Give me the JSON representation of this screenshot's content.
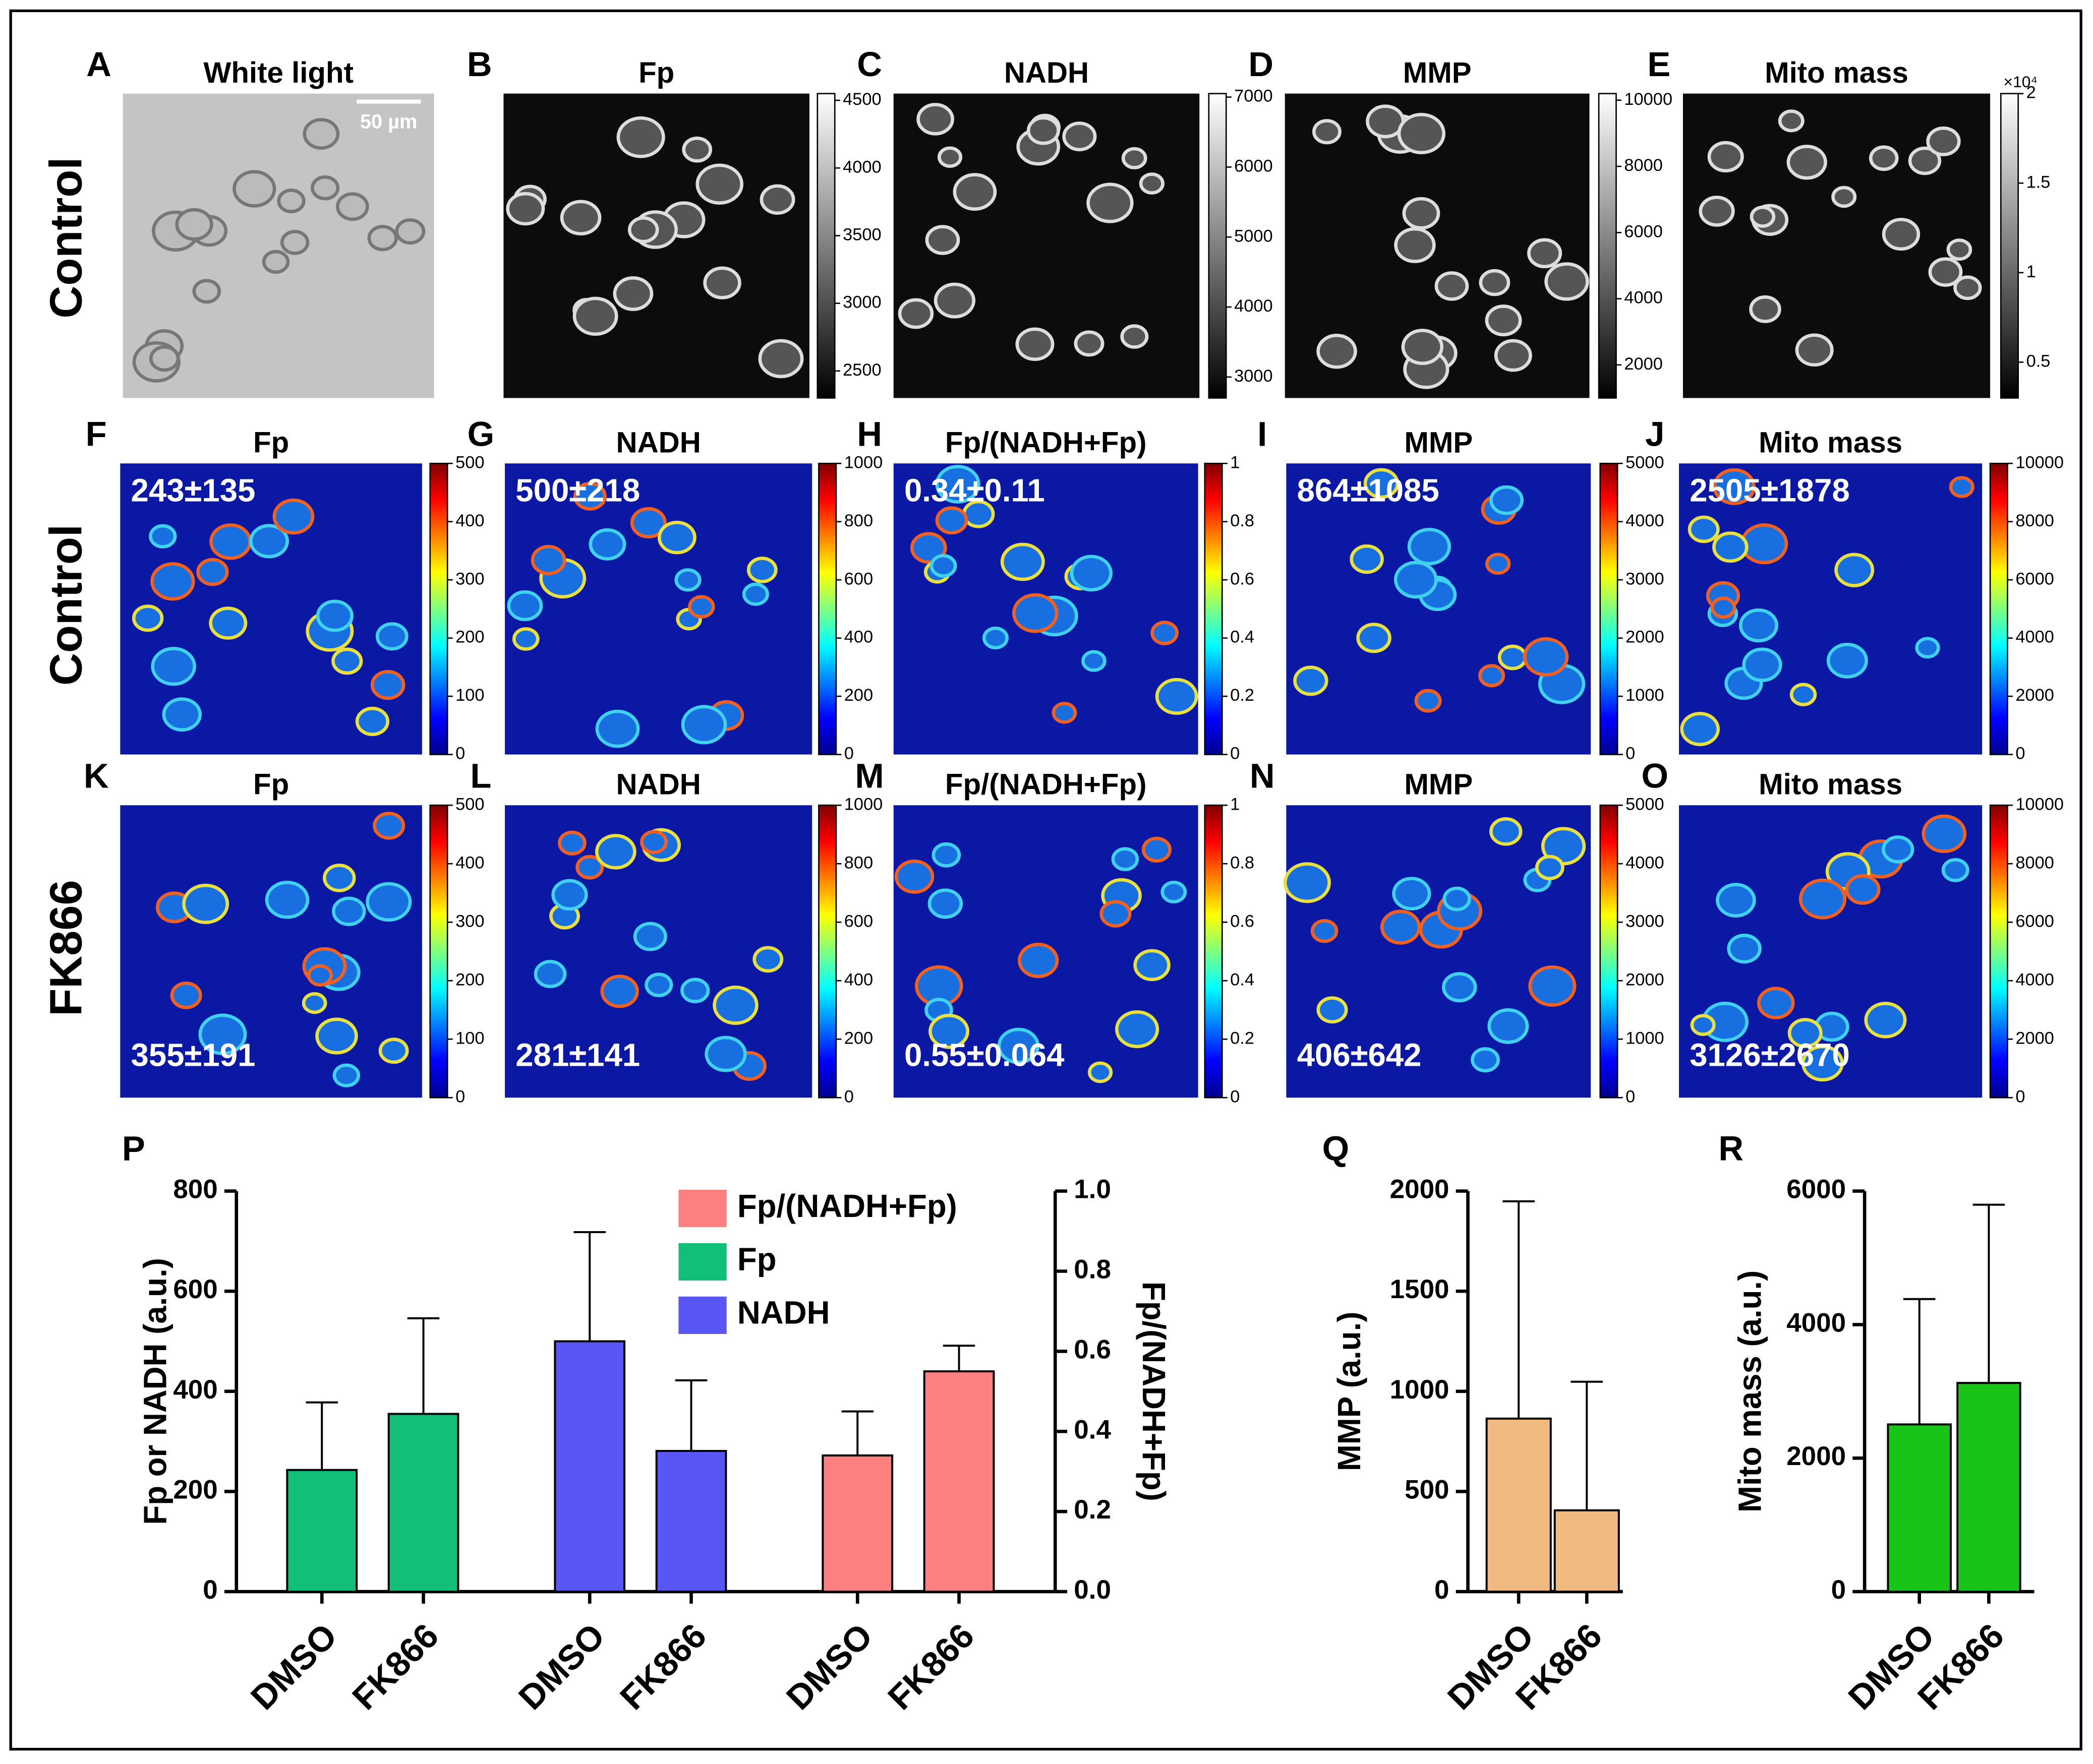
{
  "row_labels": [
    "Control",
    "Control",
    "FK866"
  ],
  "panels": [
    {
      "letter": "A",
      "title": "White light",
      "scale_bar": "50 µm"
    },
    {
      "letter": "B",
      "title": "Fp",
      "colorbar": {
        "lim": [
          2300,
          4550
        ],
        "ticks": [
          2500,
          3000,
          3500,
          4000,
          4500
        ]
      }
    },
    {
      "letter": "C",
      "title": "NADH",
      "colorbar": {
        "lim": [
          2700,
          7050
        ],
        "ticks": [
          3000,
          4000,
          5000,
          6000,
          7000
        ]
      }
    },
    {
      "letter": "D",
      "title": "MMP",
      "colorbar": {
        "lim": [
          1000,
          10200
        ],
        "ticks": [
          2000,
          4000,
          6000,
          8000,
          10000
        ]
      }
    },
    {
      "letter": "E",
      "title": "Mito mass",
      "colorbar": {
        "lim": [
          0.3,
          2
        ],
        "ticks": [
          0.5,
          1,
          1.5,
          2
        ],
        "multiplier": "×10⁴"
      }
    },
    {
      "letter": "F",
      "title": "Fp",
      "annotation": "243±135",
      "colorbar": {
        "lim": [
          0,
          500
        ],
        "ticks": [
          0,
          100,
          200,
          300,
          400,
          500
        ]
      }
    },
    {
      "letter": "G",
      "title": "NADH",
      "annotation": "500±218",
      "colorbar": {
        "lim": [
          0,
          1000
        ],
        "ticks": [
          0,
          200,
          400,
          600,
          800,
          1000
        ]
      }
    },
    {
      "letter": "H",
      "title": "Fp/(NADH+Fp)",
      "annotation": "0.34±0.11",
      "colorbar": {
        "lim": [
          0,
          1
        ],
        "ticks": [
          0,
          0.2,
          0.4,
          0.6,
          0.8,
          1
        ]
      }
    },
    {
      "letter": "I",
      "title": "MMP",
      "annotation": "864±1085",
      "colorbar": {
        "lim": [
          0,
          5000
        ],
        "ticks": [
          0,
          1000,
          2000,
          3000,
          4000,
          5000
        ]
      }
    },
    {
      "letter": "J",
      "title": "Mito mass",
      "annotation": "2505±1878",
      "colorbar": {
        "lim": [
          0,
          10000
        ],
        "ticks": [
          0,
          2000,
          4000,
          6000,
          8000,
          10000
        ]
      }
    },
    {
      "letter": "K",
      "title": "Fp",
      "annotation": "355±191",
      "colorbar": {
        "lim": [
          0,
          500
        ],
        "ticks": [
          0,
          100,
          200,
          300,
          400,
          500
        ]
      }
    },
    {
      "letter": "L",
      "title": "NADH",
      "annotation": "281±141",
      "colorbar": {
        "lim": [
          0,
          1000
        ],
        "ticks": [
          0,
          200,
          400,
          600,
          800,
          1000
        ]
      }
    },
    {
      "letter": "M",
      "title": "Fp/(NADH+Fp)",
      "annotation": "0.55±0.064",
      "colorbar": {
        "lim": [
          0,
          1
        ],
        "ticks": [
          0,
          0.2,
          0.4,
          0.6,
          0.8,
          1
        ]
      }
    },
    {
      "letter": "N",
      "title": "MMP",
      "annotation": "406±642",
      "colorbar": {
        "lim": [
          0,
          5000
        ],
        "ticks": [
          0,
          1000,
          2000,
          3000,
          4000,
          5000
        ]
      }
    },
    {
      "letter": "O",
      "title": "Mito mass",
      "annotation": "3126±2670",
      "colorbar": {
        "lim": [
          0,
          10000
        ],
        "ticks": [
          0,
          2000,
          4000,
          6000,
          8000,
          10000
        ]
      }
    }
  ],
  "chart_data": [
    {
      "type": "bar",
      "letter": "P",
      "y_label": "Fp or NADH (a.u.)",
      "y2_label": "Fp/(NADH+Fp)",
      "categories": [
        "DMSO",
        "FK866",
        "DMSO",
        "FK866",
        "DMSO",
        "FK866"
      ],
      "ylim": [
        0,
        800
      ],
      "yticks": [
        0,
        200,
        400,
        600,
        800
      ],
      "y2lim": [
        0,
        1
      ],
      "y2ticks": [
        {
          "value": 0,
          "label": "0.0"
        },
        0.2,
        0.4,
        0.6,
        0.8,
        {
          "value": 1,
          "label": "1.0"
        }
      ],
      "series": [
        {
          "name": "Fp/(NADH+Fp)",
          "color": "#fc8080",
          "axis": "y2",
          "values": [
            null,
            null,
            null,
            null,
            0.34,
            0.55
          ],
          "errors": [
            null,
            null,
            null,
            null,
            0.11,
            0.064
          ]
        },
        {
          "name": "Fp",
          "color": "#12bf78",
          "values": [
            243,
            355,
            null,
            null,
            null,
            null
          ],
          "errors": [
            135,
            191,
            null,
            null,
            null,
            null
          ]
        },
        {
          "name": "NADH",
          "color": "#5a56f5",
          "values": [
            null,
            null,
            500,
            281,
            null,
            null
          ],
          "errors": [
            null,
            null,
            218,
            141,
            null,
            null
          ]
        }
      ]
    },
    {
      "type": "bar",
      "letter": "Q",
      "y_label": "MMP (a.u.)",
      "categories": [
        "DMSO",
        "FK866"
      ],
      "ylim": [
        0,
        2000
      ],
      "yticks": [
        0,
        500,
        1000,
        1500,
        2000
      ],
      "series": [
        {
          "color": "#f0b97f",
          "values": [
            864,
            406
          ],
          "errors": [
            1085,
            642
          ]
        }
      ]
    },
    {
      "type": "bar",
      "letter": "R",
      "y_label": "Mito mass (a.u.)",
      "categories": [
        "DMSO",
        "FK866"
      ],
      "ylim": [
        0,
        6000
      ],
      "yticks": [
        0,
        2000,
        4000,
        6000
      ],
      "series": [
        {
          "color": "#18c418",
          "values": [
            2505,
            3126
          ],
          "errors": [
            1878,
            2670
          ]
        }
      ]
    }
  ]
}
